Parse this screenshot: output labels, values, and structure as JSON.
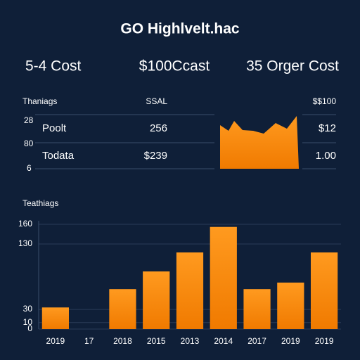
{
  "header": {
    "title": "GO Highlvelt.hac"
  },
  "kpis": [
    "5-4 Cost",
    "$100Ccast",
    "35 Orger Cost"
  ],
  "table": {
    "header": [
      "Thaniags",
      "SSAL",
      "$$100"
    ],
    "side_labels": [
      "28",
      "80",
      "6"
    ],
    "rows": [
      [
        "Poolt",
        "256",
        "$12"
      ],
      [
        "Todata",
        "$239",
        "1.00"
      ]
    ]
  },
  "chart_data": {
    "type": "bar",
    "title": "Teathiags",
    "categories": [
      "2019",
      "17",
      "2018",
      "2015",
      "2013",
      "2014",
      "2017",
      "2019",
      "2019"
    ],
    "values": [
      33,
      null,
      61,
      88,
      117,
      156,
      61,
      71,
      117
    ],
    "color": "#ff8a0d",
    "ylim": [
      0,
      160
    ],
    "yticks": [
      0,
      10,
      30,
      130,
      160
    ],
    "grid": true
  }
}
